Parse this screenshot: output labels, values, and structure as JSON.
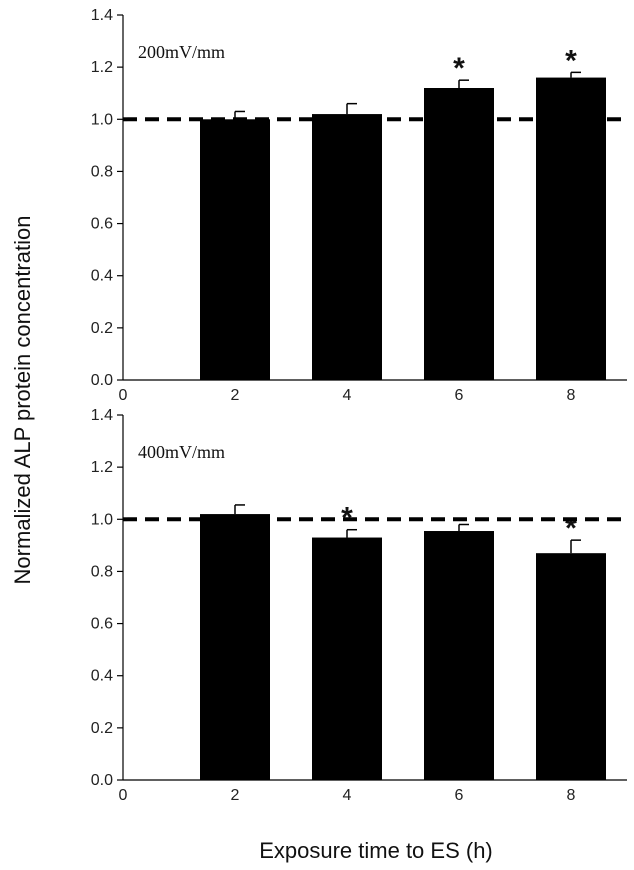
{
  "chart_data": [
    {
      "type": "bar",
      "label": "200mV/mm",
      "x": [
        2,
        4,
        6,
        8
      ],
      "values": [
        1.0,
        1.02,
        1.12,
        1.16
      ],
      "errors": [
        0.03,
        0.04,
        0.03,
        0.02
      ],
      "significant": [
        false,
        false,
        true,
        true
      ],
      "reference_line": 1.0,
      "xlim": [
        0,
        9
      ],
      "ylim": [
        0,
        1.4
      ],
      "xticks": [
        "0",
        "2",
        "4",
        "6",
        "8"
      ],
      "yticks": [
        "0.0",
        "0.2",
        "0.4",
        "0.6",
        "0.8",
        "1.0",
        "1.2",
        "1.4"
      ]
    },
    {
      "type": "bar",
      "label": "400mV/mm",
      "x": [
        2,
        4,
        6,
        8
      ],
      "values": [
        1.02,
        0.93,
        0.955,
        0.87
      ],
      "errors": [
        0.035,
        0.03,
        0.025,
        0.05
      ],
      "significant": [
        false,
        true,
        false,
        true
      ],
      "reference_line": 1.0,
      "xlim": [
        0,
        9
      ],
      "ylim": [
        0,
        1.4
      ],
      "xticks": [
        "0",
        "2",
        "4",
        "6",
        "8"
      ],
      "yticks": [
        "0.0",
        "0.2",
        "0.4",
        "0.6",
        "0.8",
        "1.0",
        "1.2",
        "1.4"
      ]
    }
  ],
  "xlabel": "Exposure time to ES (h)",
  "ylabel": "Normalized ALP protein concentration",
  "significance_marker": "*"
}
